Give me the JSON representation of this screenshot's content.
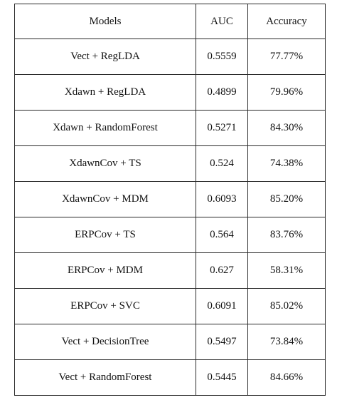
{
  "table": {
    "headers": [
      "Models",
      "AUC",
      "Accuracy"
    ],
    "rows": [
      {
        "model": "Vect  +  RegLDA",
        "auc": "0.5559",
        "accuracy": "77.77%"
      },
      {
        "model": "Xdawn  +  RegLDA",
        "auc": "0.4899",
        "accuracy": "79.96%"
      },
      {
        "model": "Xdawn  +  RandomForest",
        "auc": "0.5271",
        "accuracy": "84.30%"
      },
      {
        "model": "XdawnCov  +  TS",
        "auc": "0.524",
        "accuracy": "74.38%"
      },
      {
        "model": "XdawnCov  +  MDM",
        "auc": "0.6093",
        "accuracy": "85.20%"
      },
      {
        "model": "ERPCov  +  TS",
        "auc": "0.564",
        "accuracy": "83.76%"
      },
      {
        "model": "ERPCov  +  MDM",
        "auc": "0.627",
        "accuracy": "58.31%"
      },
      {
        "model": "ERPCov  +  SVC",
        "auc": "0.6091",
        "accuracy": "85.02%"
      },
      {
        "model": "Vect  +  DecisionTree",
        "auc": "0.5497",
        "accuracy": "73.84%"
      },
      {
        "model": "Vect  +  RandomForest",
        "auc": "0.5445",
        "accuracy": "84.66%"
      }
    ]
  }
}
